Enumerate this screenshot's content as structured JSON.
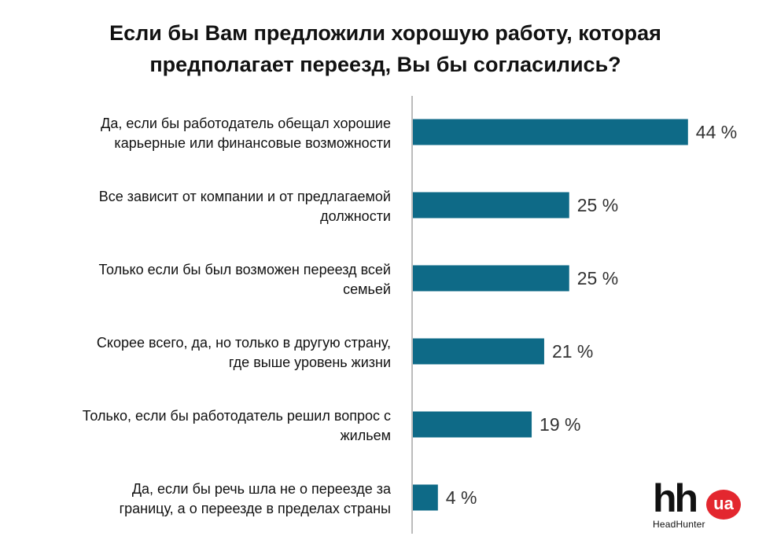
{
  "title_lines": [
    "Если бы Вам предложили хорошую работу, которая",
    "предполагает переезд, Вы бы согласились?"
  ],
  "logo": {
    "mark": "hh",
    "badge": "ua",
    "name": "HeadHunter"
  },
  "chart_data": {
    "type": "bar",
    "orientation": "horizontal",
    "categories": [
      [
        "Да, если бы работодатель обещал хорошие",
        "карьерные или финансовые возможности"
      ],
      [
        "Все зависит от компании и от предлагаемой",
        "должности"
      ],
      [
        "Только если бы был возможен переезд всей",
        "семьей"
      ],
      [
        "Скорее всего, да, но только в другую страну,",
        "где выше уровень жизни"
      ],
      [
        "Только, если бы работодатель решил вопрос с",
        "жильем"
      ],
      [
        "Да, если бы речь шла не о переезде за",
        "границу, а о переезде в пределах страны"
      ]
    ],
    "values": [
      44,
      25,
      25,
      21,
      19,
      4
    ],
    "value_labels": [
      "44 %",
      "25 %",
      "25 %",
      "21 %",
      "19 %",
      "4 %"
    ],
    "unit": "%",
    "bar_color": "#0e6a87",
    "axis_color": "#a6a6a6",
    "grid": false,
    "legend": "none"
  }
}
